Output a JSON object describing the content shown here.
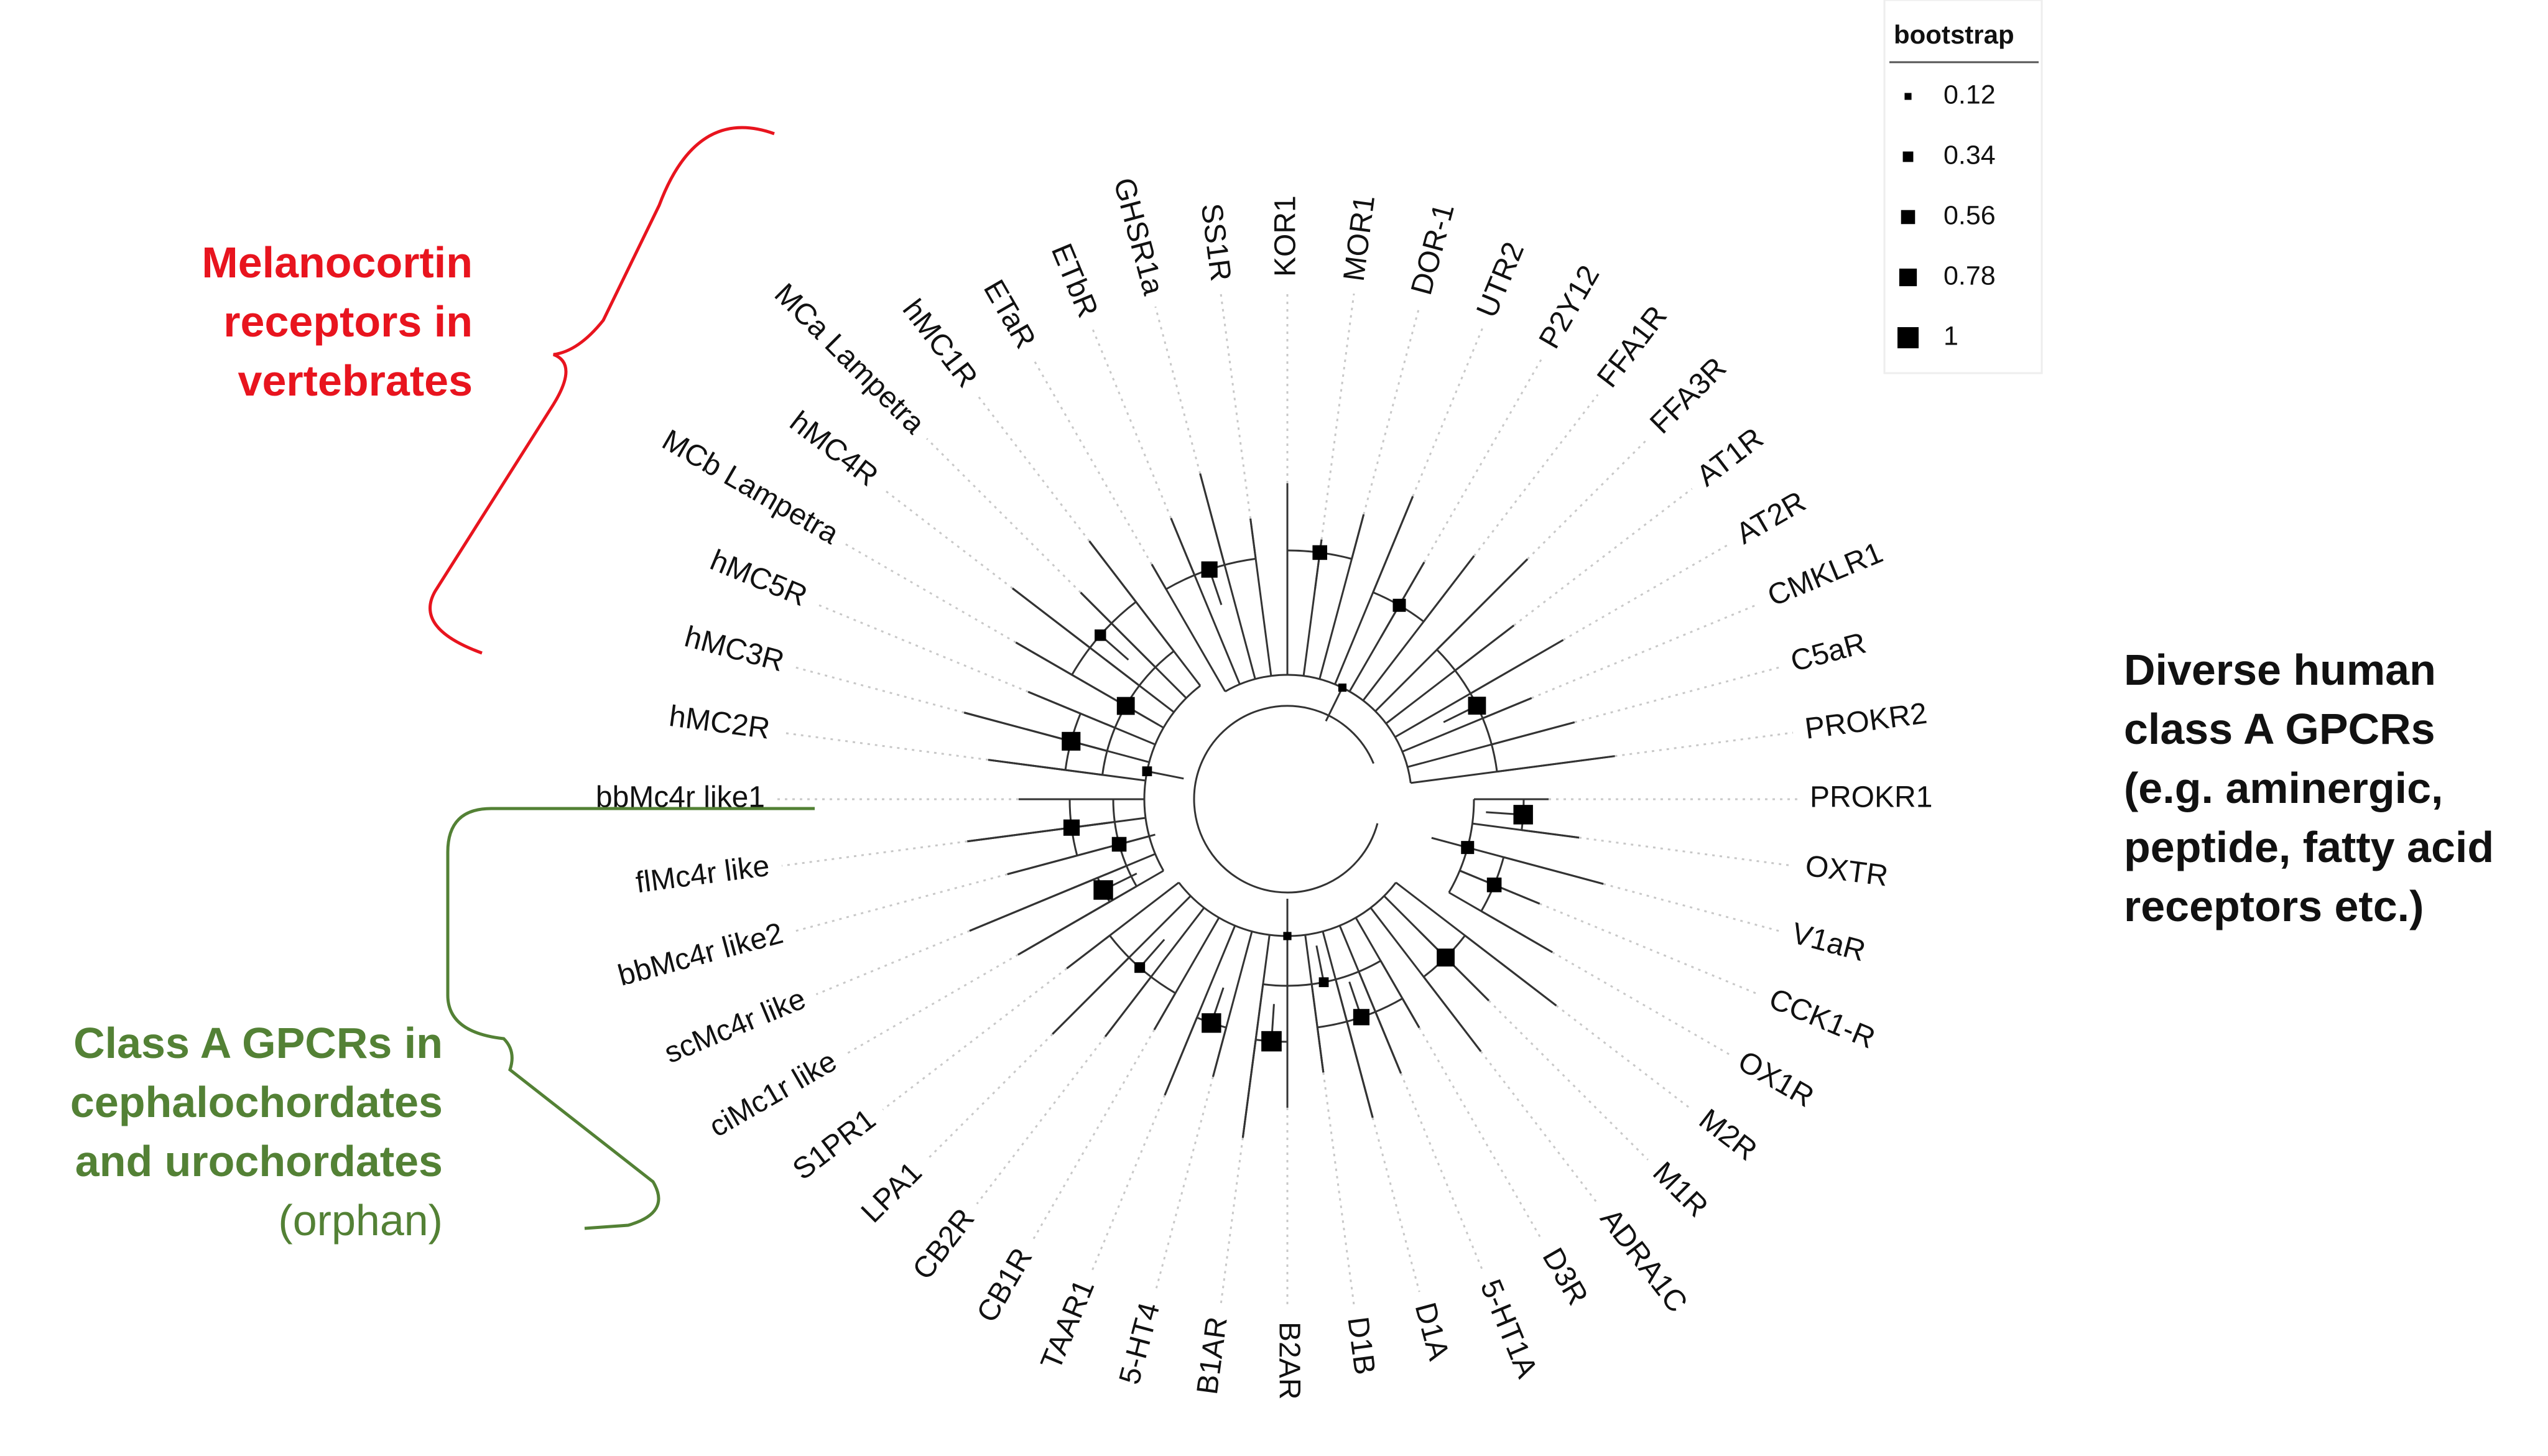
{
  "legend": {
    "title": "bootstrap",
    "items": [
      {
        "label": "0.12",
        "value": 0.12
      },
      {
        "label": "0.34",
        "value": 0.34
      },
      {
        "label": "0.56",
        "value": 0.56
      },
      {
        "label": "0.78",
        "value": 0.78
      },
      {
        "label": "1",
        "value": 1
      }
    ]
  },
  "leaves": [
    "PROKR1",
    "OXTR",
    "V1aR",
    "CCK1-R",
    "OX1R",
    "M2R",
    "M1R",
    "ADRA1C",
    "D3R",
    "5-HT1A",
    "D1A",
    "D1B",
    "B2AR",
    "B1AR",
    "5-HT4",
    "TAAR1",
    "CB1R",
    "CB2R",
    "LPA1",
    "S1PR1",
    "ciMc1r like",
    "scMc4r like",
    "bbMc4r like2",
    "flMc4r like",
    "bbMc4r like1",
    "hMC2R",
    "hMC3R",
    "hMC5R",
    "MCb Lampetra",
    "hMC4R",
    "MCa Lampetra",
    "hMC1R",
    "ETaR",
    "ETbR",
    "GHSR1a",
    "SS1R",
    "KOR1",
    "MOR1",
    "DOR-1",
    "UTR2",
    "P2Y12",
    "FFA1R",
    "FFA3R",
    "AT1R",
    "AT2R",
    "CMKLR1",
    "C5aR",
    "PROKR2"
  ],
  "annotations": {
    "melanocortin": {
      "lines": [
        "Melanocortin",
        "receptors in",
        "vertebrates"
      ],
      "color": "#e8141e"
    },
    "gpcr": {
      "lines": [
        "Diverse human",
        "class A GPCRs",
        "(e.g. aminergic,",
        "peptide, fatty acid",
        "receptors etc.)"
      ],
      "color": "#111111"
    },
    "chordates": {
      "lines": [
        "Class A GPCRs in",
        "cephalochordates",
        "and urochordates"
      ],
      "sub": "(orphan)",
      "color": "#538135"
    }
  }
}
